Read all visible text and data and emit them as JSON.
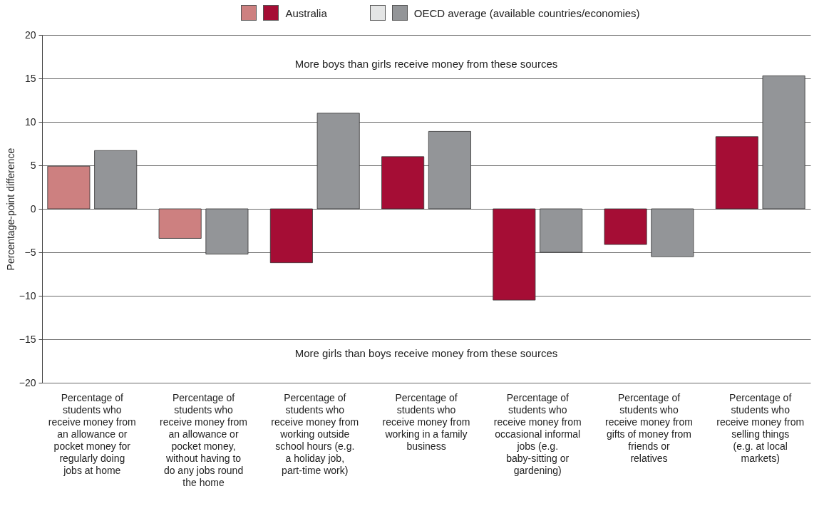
{
  "chart_data": {
    "type": "bar",
    "ylabel": "Percentage-point difference",
    "categories": [
      "Percentage of students who receive money from an allowance or pocket money for regularly doing jobs at home",
      "Percentage of students who receive money from an allowance or pocket money, without having to do any jobs round the home",
      "Percentage of students who receive money from working outside school hours (e.g. a holiday job, part-time work)",
      "Percentage of students who receive money from working in a family business",
      "Percentage of students who receive money from occasional informal jobs (e.g. baby-sitting or gardening)",
      "Percentage of students who receive money from gifts of money from friends or relatives",
      "Percentage of students who receive money from selling things (e.g. at local markets)"
    ],
    "series": [
      {
        "name": "Australia",
        "color": "#a50d35",
        "colors": [
          "#cd8080",
          "#cd8080",
          "#a50d35",
          "#a50d35",
          "#a50d35",
          "#a50d35",
          "#a50d35"
        ],
        "values": [
          4.9,
          -3.4,
          -6.2,
          6.0,
          -10.5,
          -4.1,
          8.3
        ]
      },
      {
        "name": "OECD average (available countries/economies)",
        "color": "#939598",
        "colors": [
          "#939598",
          "#939598",
          "#939598",
          "#939598",
          "#939598",
          "#939598",
          "#939598"
        ],
        "values": [
          6.7,
          -5.2,
          11.0,
          8.9,
          -5.0,
          -5.5,
          15.3
        ]
      }
    ],
    "ylim": [
      -20,
      20
    ],
    "yticks": [
      -20,
      -15,
      -10,
      -5,
      0,
      5,
      10,
      15,
      20
    ],
    "grid": "y",
    "legend": "top",
    "annotations": [
      "More boys than girls receive money from these sources",
      "More girls than boys receive money from these sources"
    ]
  }
}
